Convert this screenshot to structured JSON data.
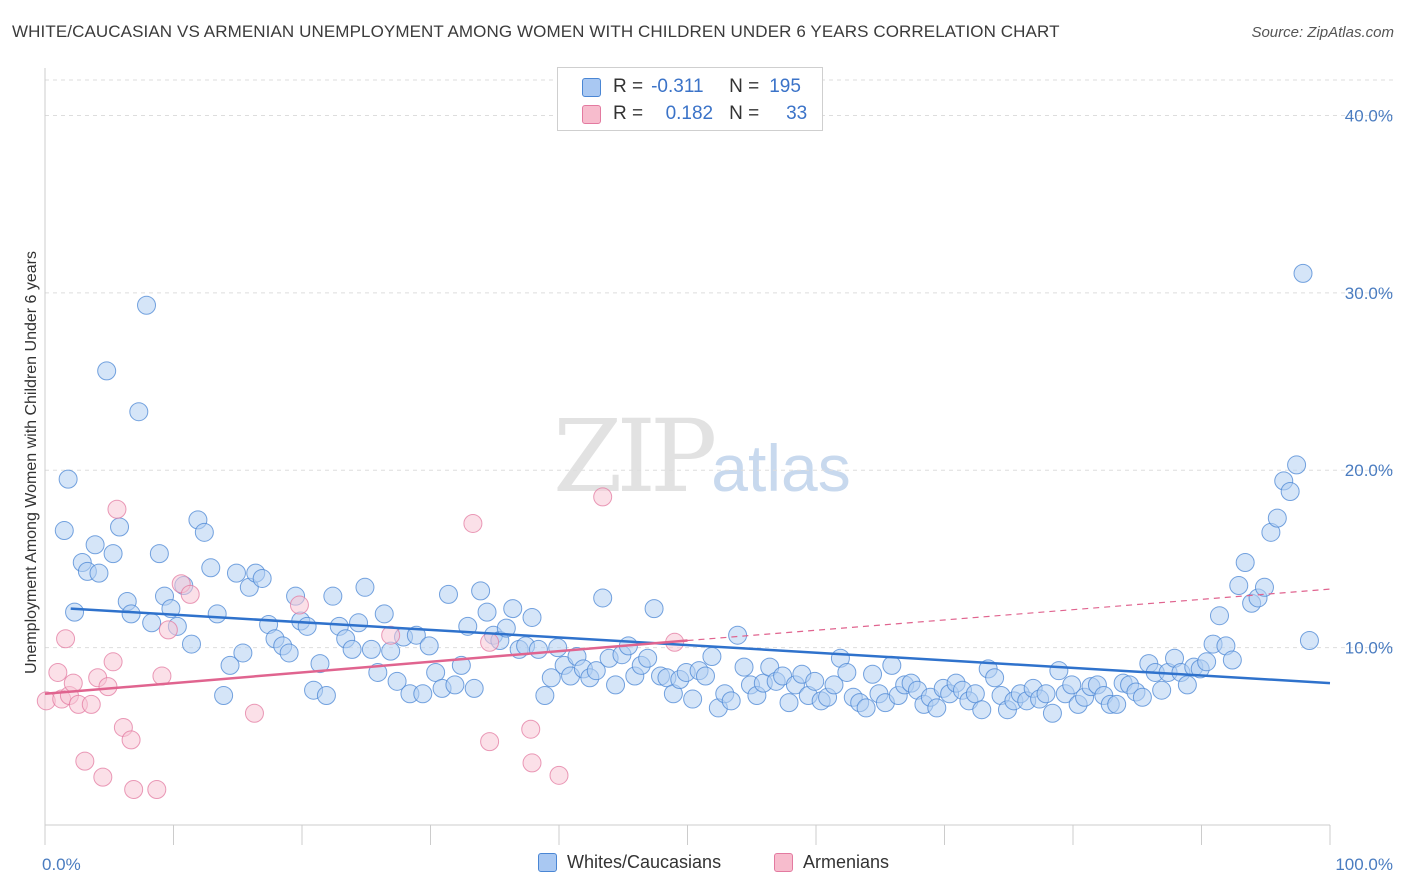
{
  "title": "WHITE/CAUCASIAN VS ARMENIAN UNEMPLOYMENT AMONG WOMEN WITH CHILDREN UNDER 6 YEARS CORRELATION CHART",
  "source": "Source: ZipAtlas.com",
  "watermark": {
    "zip": "ZIP",
    "atlas": "atlas"
  },
  "legend_top": [
    {
      "r_label": "R =",
      "r_value": "-0.311",
      "n_label": "N =",
      "n_value": "195",
      "color": "#a9c8f2"
    },
    {
      "r_label": "R =",
      "r_value": "0.182",
      "n_label": "N =",
      "n_value": "33",
      "color": "#f7bccd"
    }
  ],
  "legend_bottom": [
    {
      "label": "Whites/Caucasians",
      "color": "#a9c8f2"
    },
    {
      "label": "Armenians",
      "color": "#f7bccd"
    }
  ],
  "chart_data": {
    "type": "scatter",
    "xlabel": "",
    "ylabel": "Unemployment Among Women with Children Under 6 years",
    "xlim": [
      0,
      100
    ],
    "ylim": [
      0,
      42
    ],
    "x_tick_labels": [
      "0.0%",
      "100.0%"
    ],
    "y_ticks": [
      10,
      20,
      30,
      40
    ],
    "y_tick_labels": [
      "10.0%",
      "20.0%",
      "30.0%",
      "40.0%"
    ],
    "grid": "horizontal dashed",
    "series": [
      {
        "name": "Whites/Caucasians",
        "color": "#4a86d4",
        "fill": "#b3cff3",
        "trend": {
          "x0": 2,
          "y0": 12.2,
          "x1": 100,
          "y1": 8.0
        },
        "points": [
          [
            1.8,
            19.5
          ],
          [
            1.5,
            16.6
          ],
          [
            2.3,
            12.0
          ],
          [
            2.9,
            14.8
          ],
          [
            3.3,
            14.3
          ],
          [
            3.9,
            15.8
          ],
          [
            4.2,
            14.2
          ],
          [
            4.8,
            25.6
          ],
          [
            5.3,
            15.3
          ],
          [
            5.8,
            16.8
          ],
          [
            6.4,
            12.6
          ],
          [
            6.7,
            11.9
          ],
          [
            7.3,
            23.3
          ],
          [
            7.9,
            29.3
          ],
          [
            8.3,
            11.4
          ],
          [
            8.9,
            15.3
          ],
          [
            9.3,
            12.9
          ],
          [
            9.8,
            12.2
          ],
          [
            10.3,
            11.2
          ],
          [
            10.8,
            13.5
          ],
          [
            11.4,
            10.2
          ],
          [
            11.9,
            17.2
          ],
          [
            12.4,
            16.5
          ],
          [
            12.9,
            14.5
          ],
          [
            13.4,
            11.9
          ],
          [
            13.9,
            7.3
          ],
          [
            14.4,
            9.0
          ],
          [
            14.9,
            14.2
          ],
          [
            15.4,
            9.7
          ],
          [
            15.9,
            13.4
          ],
          [
            16.4,
            14.2
          ],
          [
            16.9,
            13.9
          ],
          [
            17.4,
            11.3
          ],
          [
            17.9,
            10.5
          ],
          [
            18.5,
            10.1
          ],
          [
            19.0,
            9.7
          ],
          [
            19.5,
            12.9
          ],
          [
            19.9,
            11.5
          ],
          [
            20.4,
            11.2
          ],
          [
            20.9,
            7.6
          ],
          [
            21.4,
            9.1
          ],
          [
            21.9,
            7.3
          ],
          [
            22.4,
            12.9
          ],
          [
            22.9,
            11.2
          ],
          [
            23.4,
            10.5
          ],
          [
            23.9,
            9.9
          ],
          [
            24.4,
            11.4
          ],
          [
            24.9,
            13.4
          ],
          [
            25.4,
            9.9
          ],
          [
            25.9,
            8.6
          ],
          [
            26.4,
            11.9
          ],
          [
            26.9,
            9.8
          ],
          [
            27.4,
            8.1
          ],
          [
            27.9,
            10.6
          ],
          [
            28.4,
            7.4
          ],
          [
            28.9,
            10.7
          ],
          [
            29.4,
            7.4
          ],
          [
            29.9,
            10.1
          ],
          [
            30.4,
            8.6
          ],
          [
            30.9,
            7.7
          ],
          [
            31.4,
            13.0
          ],
          [
            31.9,
            7.9
          ],
          [
            32.4,
            9.0
          ],
          [
            32.9,
            11.2
          ],
          [
            33.4,
            7.7
          ],
          [
            33.9,
            13.2
          ],
          [
            34.4,
            12.0
          ],
          [
            34.9,
            10.7
          ],
          [
            35.4,
            10.4
          ],
          [
            35.9,
            11.1
          ],
          [
            36.4,
            12.2
          ],
          [
            36.9,
            9.9
          ],
          [
            37.4,
            10.1
          ],
          [
            37.9,
            11.7
          ],
          [
            38.4,
            9.9
          ],
          [
            38.9,
            7.3
          ],
          [
            39.4,
            8.3
          ],
          [
            39.9,
            10.0
          ],
          [
            40.4,
            9.0
          ],
          [
            40.9,
            8.4
          ],
          [
            41.4,
            9.5
          ],
          [
            41.9,
            8.8
          ],
          [
            42.4,
            8.3
          ],
          [
            42.9,
            8.7
          ],
          [
            43.4,
            12.8
          ],
          [
            43.9,
            9.4
          ],
          [
            44.4,
            7.9
          ],
          [
            44.9,
            9.6
          ],
          [
            45.4,
            10.1
          ],
          [
            45.9,
            8.4
          ],
          [
            46.4,
            9.0
          ],
          [
            46.9,
            9.4
          ],
          [
            47.4,
            12.2
          ],
          [
            47.9,
            8.4
          ],
          [
            48.4,
            8.3
          ],
          [
            48.9,
            7.4
          ],
          [
            49.4,
            8.2
          ],
          [
            49.9,
            8.6
          ],
          [
            50.4,
            7.1
          ],
          [
            50.9,
            8.7
          ],
          [
            51.4,
            8.4
          ],
          [
            51.9,
            9.5
          ],
          [
            52.4,
            6.6
          ],
          [
            52.9,
            7.4
          ],
          [
            53.4,
            7.0
          ],
          [
            53.9,
            10.7
          ],
          [
            54.4,
            8.9
          ],
          [
            54.9,
            7.9
          ],
          [
            55.4,
            7.3
          ],
          [
            55.9,
            8.0
          ],
          [
            56.4,
            8.9
          ],
          [
            56.9,
            8.1
          ],
          [
            57.4,
            8.4
          ],
          [
            57.9,
            6.9
          ],
          [
            58.4,
            7.9
          ],
          [
            58.9,
            8.5
          ],
          [
            59.4,
            7.3
          ],
          [
            59.9,
            8.1
          ],
          [
            60.4,
            7.0
          ],
          [
            60.9,
            7.2
          ],
          [
            61.4,
            7.9
          ],
          [
            61.9,
            9.4
          ],
          [
            62.4,
            8.6
          ],
          [
            62.9,
            7.2
          ],
          [
            63.4,
            6.9
          ],
          [
            63.9,
            6.6
          ],
          [
            64.4,
            8.5
          ],
          [
            64.9,
            7.4
          ],
          [
            65.4,
            6.9
          ],
          [
            65.9,
            9.0
          ],
          [
            66.4,
            7.3
          ],
          [
            66.9,
            7.9
          ],
          [
            67.4,
            8.0
          ],
          [
            67.9,
            7.6
          ],
          [
            68.4,
            6.8
          ],
          [
            68.9,
            7.2
          ],
          [
            69.4,
            6.6
          ],
          [
            69.9,
            7.7
          ],
          [
            70.4,
            7.4
          ],
          [
            70.9,
            8.0
          ],
          [
            71.4,
            7.6
          ],
          [
            71.9,
            7.0
          ],
          [
            72.4,
            7.4
          ],
          [
            72.9,
            6.5
          ],
          [
            73.4,
            8.8
          ],
          [
            73.9,
            8.3
          ],
          [
            74.4,
            7.3
          ],
          [
            74.9,
            6.5
          ],
          [
            75.4,
            7.0
          ],
          [
            75.9,
            7.4
          ],
          [
            76.4,
            7.0
          ],
          [
            76.9,
            7.7
          ],
          [
            77.4,
            7.1
          ],
          [
            77.9,
            7.4
          ],
          [
            78.4,
            6.3
          ],
          [
            78.9,
            8.7
          ],
          [
            79.4,
            7.4
          ],
          [
            79.9,
            7.9
          ],
          [
            80.4,
            6.8
          ],
          [
            80.9,
            7.2
          ],
          [
            81.4,
            7.8
          ],
          [
            81.9,
            7.9
          ],
          [
            82.4,
            7.3
          ],
          [
            82.9,
            6.8
          ],
          [
            83.4,
            6.8
          ],
          [
            83.9,
            8.0
          ],
          [
            84.4,
            7.9
          ],
          [
            84.9,
            7.5
          ],
          [
            85.4,
            7.2
          ],
          [
            85.9,
            9.1
          ],
          [
            86.4,
            8.6
          ],
          [
            86.9,
            7.6
          ],
          [
            87.4,
            8.6
          ],
          [
            87.9,
            9.4
          ],
          [
            88.4,
            8.6
          ],
          [
            88.9,
            7.9
          ],
          [
            89.4,
            8.9
          ],
          [
            89.9,
            8.8
          ],
          [
            90.4,
            9.2
          ],
          [
            90.9,
            10.2
          ],
          [
            91.4,
            11.8
          ],
          [
            91.9,
            10.1
          ],
          [
            92.4,
            9.3
          ],
          [
            92.9,
            13.5
          ],
          [
            93.4,
            14.8
          ],
          [
            93.9,
            12.5
          ],
          [
            94.4,
            12.8
          ],
          [
            94.9,
            13.4
          ],
          [
            95.4,
            16.5
          ],
          [
            95.9,
            17.3
          ],
          [
            96.4,
            19.4
          ],
          [
            96.9,
            18.8
          ],
          [
            97.4,
            20.3
          ],
          [
            97.9,
            31.1
          ],
          [
            98.4,
            10.4
          ]
        ]
      },
      {
        "name": "Armenians",
        "color": "#e37aa0",
        "fill": "#f8c7d6",
        "trend": {
          "x0": 0,
          "y0": 7.4,
          "x1": 50,
          "y1": 10.4
        },
        "trend_dashed": {
          "x0": 50,
          "y0": 10.4,
          "x1": 100,
          "y1": 13.3
        },
        "points": [
          [
            0.1,
            7.0
          ],
          [
            1.0,
            8.6
          ],
          [
            1.3,
            7.1
          ],
          [
            1.6,
            10.5
          ],
          [
            1.9,
            7.3
          ],
          [
            2.2,
            8.0
          ],
          [
            2.6,
            6.8
          ],
          [
            3.1,
            3.6
          ],
          [
            3.6,
            6.8
          ],
          [
            4.1,
            8.3
          ],
          [
            4.5,
            2.7
          ],
          [
            4.9,
            7.8
          ],
          [
            5.3,
            9.2
          ],
          [
            5.6,
            17.8
          ],
          [
            6.1,
            5.5
          ],
          [
            6.7,
            4.8
          ],
          [
            6.9,
            2.0
          ],
          [
            8.7,
            2.0
          ],
          [
            9.1,
            8.4
          ],
          [
            9.6,
            11.0
          ],
          [
            10.6,
            13.6
          ],
          [
            11.3,
            13.0
          ],
          [
            16.3,
            6.3
          ],
          [
            19.8,
            12.4
          ],
          [
            26.9,
            10.7
          ],
          [
            33.3,
            17.0
          ],
          [
            34.6,
            4.7
          ],
          [
            34.6,
            10.3
          ],
          [
            37.8,
            5.4
          ],
          [
            37.9,
            3.5
          ],
          [
            40.0,
            2.8
          ],
          [
            43.4,
            18.5
          ],
          [
            49.0,
            10.3
          ]
        ]
      }
    ]
  }
}
